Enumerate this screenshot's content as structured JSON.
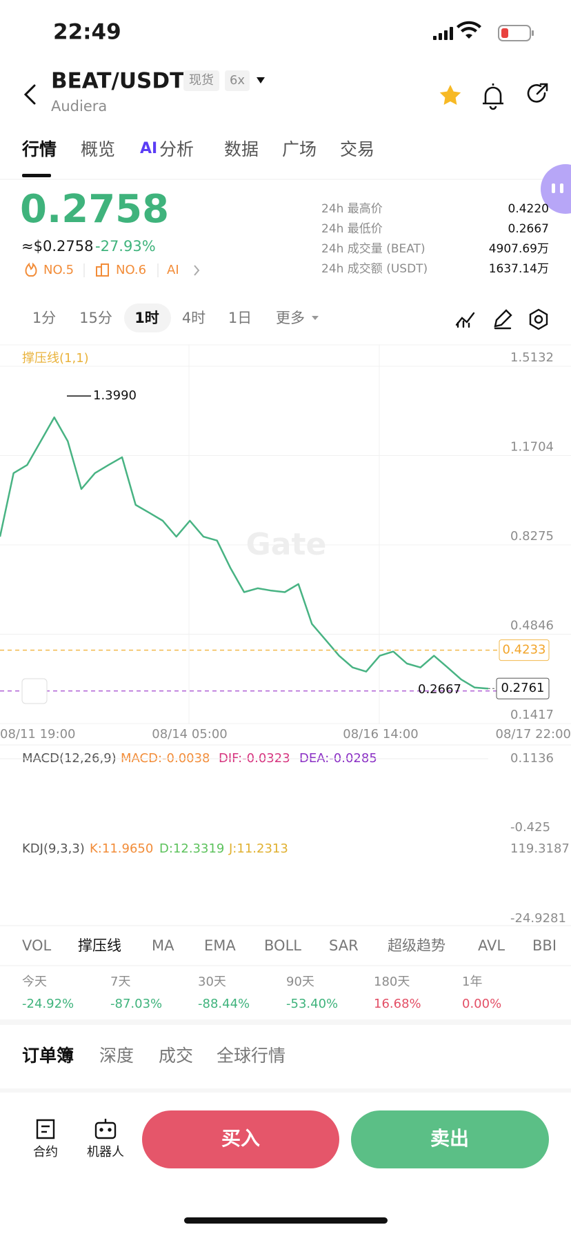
{
  "status": {
    "time": "22:49"
  },
  "header": {
    "pair": "BEAT/USDT",
    "spot": "现货",
    "leverage": "6x",
    "name": "Audiera"
  },
  "tabs": [
    "行情",
    "概览",
    "分析",
    "数据",
    "广场",
    "交易"
  ],
  "ai_badge": "AI",
  "price": {
    "last": "0.2758",
    "usd": "≈$0.2758",
    "change": "-27.93%",
    "rank1": "NO.5",
    "rank2": "NO.6",
    "ai": "AI"
  },
  "stats": [
    {
      "label": "24h 最高价",
      "value": "0.4220"
    },
    {
      "label": "24h 最低价",
      "value": "0.2667"
    },
    {
      "label": "24h 成交量 (BEAT)",
      "value": "4907.69万"
    },
    {
      "label": "24h 成交额 (USDT)",
      "value": "1637.14万"
    }
  ],
  "intervals": [
    "1分",
    "15分",
    "1时",
    "4时",
    "1日",
    "更多"
  ],
  "chart_data": {
    "type": "line",
    "title": "撑压线(1,1)",
    "watermark": "Gate",
    "color": "#48b383",
    "values": [
      0.859,
      1.103,
      1.134,
      1.225,
      1.317,
      1.225,
      1.042,
      1.103,
      1.134,
      1.164,
      0.981,
      0.951,
      0.92,
      0.859,
      0.92,
      0.859,
      0.844,
      0.738,
      0.646,
      0.661,
      0.652,
      0.646,
      0.677,
      0.524,
      0.463,
      0.402,
      0.357,
      0.341,
      0.402,
      0.418,
      0.372,
      0.357,
      0.402,
      0.357,
      0.311,
      0.28,
      0.2758
    ],
    "ylim": [
      0.1417,
      1.5132
    ],
    "yticks": [
      {
        "value": 1.5132,
        "label": "1.5132"
      },
      {
        "value": 1.1704,
        "label": "1.1704"
      },
      {
        "value": 0.8275,
        "label": "0.8275"
      },
      {
        "value": 0.4846,
        "label": "0.4846"
      },
      {
        "value": 0.1417,
        "label": "0.1417"
      }
    ],
    "x_labels": [
      "08/11 19:00",
      "08/14 05:00",
      "08/16 14:00",
      "08/17 22:00"
    ],
    "annotations": {
      "high": {
        "value": 1.399,
        "label": "1.3990"
      },
      "resistance": {
        "value": 0.4233,
        "label": "0.4233"
      },
      "current": {
        "value": 0.2761,
        "label": "0.2761"
      },
      "low": {
        "value": 0.2667,
        "label": "0.2667"
      }
    }
  },
  "macd": {
    "title": "MACD(12,26,9)",
    "macd": "MACD:-0.0038",
    "dif": "DIF:-0.0323",
    "dea": "DEA:-0.0285",
    "top": "0.1136",
    "bottom": "-0.425"
  },
  "kdj": {
    "title": "KDJ(9,3,3)",
    "k": "K:11.9650",
    "d": "D:12.3319",
    "j": "J:11.2313",
    "top": "119.3187",
    "bottom": "-24.9281"
  },
  "indicators": [
    "VOL",
    "撑压线",
    "MA",
    "EMA",
    "BOLL",
    "SAR",
    "超级趋势",
    "AVL",
    "BBI"
  ],
  "performance": [
    {
      "period": "今天",
      "change": "-24.92%"
    },
    {
      "period": "7天",
      "change": "-87.03%"
    },
    {
      "period": "30天",
      "change": "-88.44%"
    },
    {
      "period": "90天",
      "change": "-53.40%"
    },
    {
      "period": "180天",
      "change": "16.68%"
    },
    {
      "period": "1年",
      "change": "0.00%"
    }
  ],
  "book_tabs": [
    "订单簿",
    "深度",
    "成交",
    "全球行情"
  ],
  "bottom": {
    "contract": "合约",
    "robot": "机器人",
    "buy": "买入",
    "sell": "卖出"
  }
}
